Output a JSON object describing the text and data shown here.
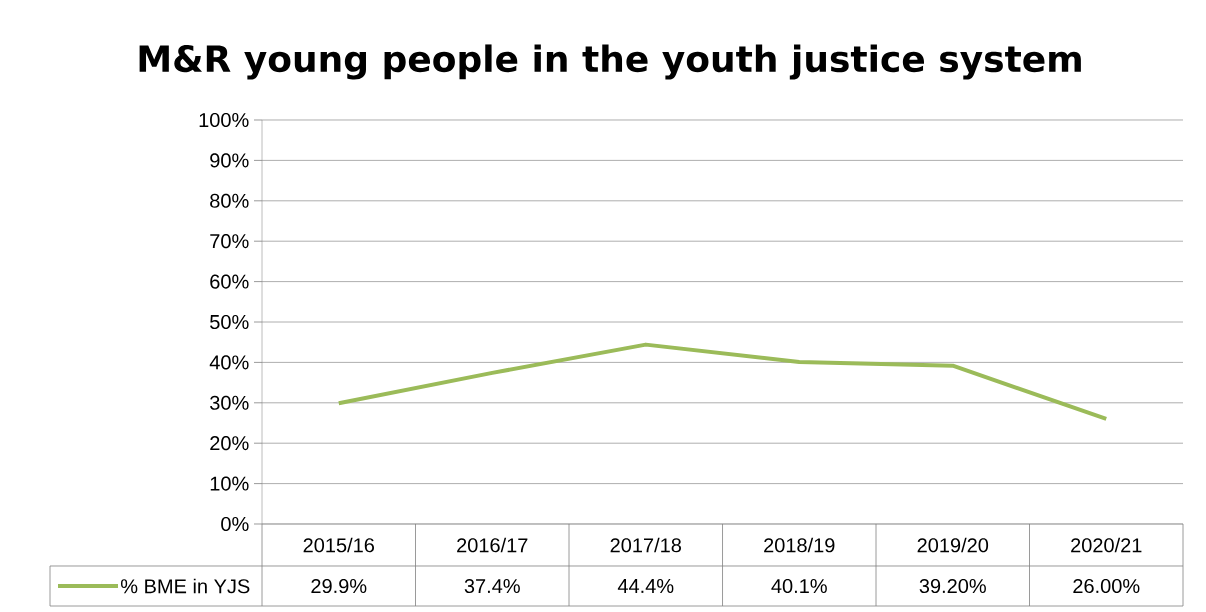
{
  "chart_data": {
    "type": "line",
    "title": "M&R young people in the youth justice system",
    "categories": [
      "2015/16",
      "2016/17",
      "2017/18",
      "2018/19",
      "2019/20",
      "2020/21"
    ],
    "series": [
      {
        "name": "% BME in YJS",
        "color": "#9bbb59",
        "values": [
          29.9,
          37.4,
          44.4,
          40.1,
          39.2,
          26.0
        ],
        "value_labels": [
          "29.9%",
          "37.4%",
          "44.4%",
          "40.1%",
          "39.20%",
          "26.00%"
        ]
      }
    ],
    "ylim": [
      0,
      100
    ],
    "yticks": [
      {
        "value": 0,
        "label": "0%"
      },
      {
        "value": 10,
        "label": "10%"
      },
      {
        "value": 20,
        "label": "20%"
      },
      {
        "value": 30,
        "label": "30%"
      },
      {
        "value": 40,
        "label": "40%"
      },
      {
        "value": 50,
        "label": "50%"
      },
      {
        "value": 60,
        "label": "60%"
      },
      {
        "value": 70,
        "label": "70%"
      },
      {
        "value": 80,
        "label": "80%"
      },
      {
        "value": 90,
        "label": "90%"
      },
      {
        "value": 100,
        "label": "100%"
      }
    ],
    "grid": "y",
    "legend": "bottom",
    "marker": "none",
    "line_style": "solid"
  }
}
